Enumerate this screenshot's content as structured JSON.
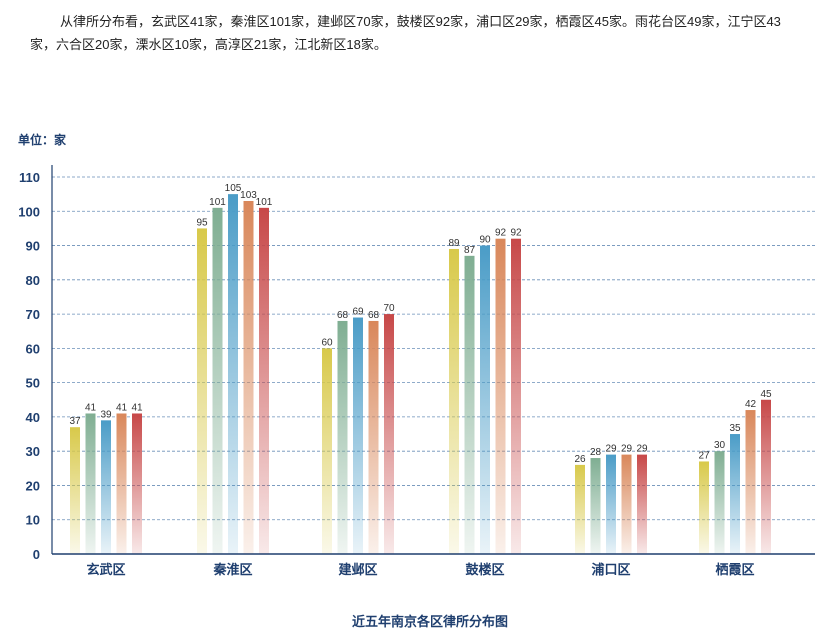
{
  "intro_text": "从律所分布看，玄武区41家，秦淮区101家，建邺区70家，鼓楼区92家，浦口区29家，栖霞区45家。雨花台区49家，江宁区43家，六合区20家，溧水区10家，高淳区21家，江北新区18家。",
  "chart_data": {
    "type": "bar",
    "title": "近五年南京各区律所分布图",
    "unit": "单位：家",
    "categories": [
      "玄武区",
      "秦淮区",
      "建邺区",
      "鼓楼区",
      "浦口区",
      "栖霞区"
    ],
    "series": [
      {
        "values": [
          37,
          95,
          60,
          89,
          26,
          27
        ],
        "color": "#d8c94a"
      },
      {
        "values": [
          41,
          101,
          68,
          87,
          28,
          30
        ],
        "color": "#7fae92"
      },
      {
        "values": [
          39,
          105,
          69,
          90,
          29,
          35
        ],
        "color": "#4a9cc7"
      },
      {
        "values": [
          41,
          103,
          68,
          92,
          29,
          42
        ],
        "color": "#d9875a"
      },
      {
        "values": [
          41,
          101,
          70,
          92,
          29,
          45
        ],
        "color": "#c74848"
      }
    ],
    "ylim": [
      0,
      110
    ],
    "yticks": [
      0,
      10,
      20,
      30,
      40,
      50,
      60,
      70,
      80,
      90,
      100,
      110
    ],
    "grid": true
  }
}
